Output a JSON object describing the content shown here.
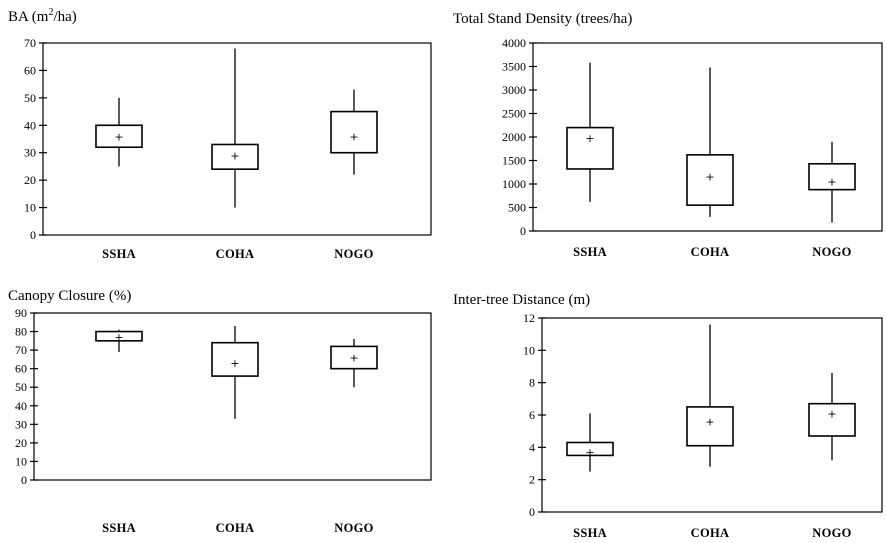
{
  "chart_data": [
    {
      "type": "box",
      "title": "BA (m²/ha)",
      "title_parts": [
        "BA (m",
        "2",
        "/ha)"
      ],
      "categories": [
        "SSHA",
        "COHA",
        "NOGO"
      ],
      "ylim": [
        0,
        70
      ],
      "yticks": [
        "0",
        "10",
        "20",
        "30",
        "40",
        "50",
        "60",
        "70"
      ],
      "boxes": [
        {
          "name": "SSHA",
          "min": 25,
          "q1": 32,
          "q3": 40,
          "max": 50,
          "mean": 36
        },
        {
          "name": "COHA",
          "min": 10,
          "q1": 24,
          "q3": 33,
          "max": 68,
          "mean": 29
        },
        {
          "name": "NOGO",
          "min": 22,
          "q1": 30,
          "q3": 45,
          "max": 53,
          "mean": 36
        }
      ]
    },
    {
      "type": "box",
      "title": "Total Stand Density (trees/ha)",
      "categories": [
        "SSHA",
        "COHA",
        "NOGO"
      ],
      "ylim": [
        0,
        4000
      ],
      "yticks": [
        "0",
        "500",
        "1000",
        "1500",
        "2000",
        "2500",
        "3000",
        "3500",
        "4000"
      ],
      "boxes": [
        {
          "name": "SSHA",
          "min": 620,
          "q1": 1320,
          "q3": 2200,
          "max": 3580,
          "mean": 1980
        },
        {
          "name": "COHA",
          "min": 300,
          "q1": 550,
          "q3": 1620,
          "max": 3480,
          "mean": 1160
        },
        {
          "name": "NOGO",
          "min": 180,
          "q1": 880,
          "q3": 1430,
          "max": 1900,
          "mean": 1050
        }
      ]
    },
    {
      "type": "box",
      "title": "Canopy Closure (%)",
      "categories": [
        "SSHA",
        "COHA",
        "NOGO"
      ],
      "ylim": [
        0,
        90
      ],
      "yticks": [
        "0",
        "10",
        "20",
        "30",
        "40",
        "50",
        "60",
        "70",
        "80",
        "90"
      ],
      "boxes": [
        {
          "name": "SSHA",
          "min": 69,
          "q1": 75,
          "q3": 80,
          "max": 81,
          "mean": 77
        },
        {
          "name": "COHA",
          "min": 33,
          "q1": 56,
          "q3": 74,
          "max": 83,
          "mean": 63
        },
        {
          "name": "NOGO",
          "min": 50,
          "q1": 60,
          "q3": 72,
          "max": 76,
          "mean": 66
        }
      ]
    },
    {
      "type": "box",
      "title": "Inter-tree Distance (m)",
      "categories": [
        "SSHA",
        "COHA",
        "NOGO"
      ],
      "ylim": [
        0,
        12
      ],
      "yticks": [
        "0",
        "2",
        "4",
        "6",
        "8",
        "10",
        "12"
      ],
      "boxes": [
        {
          "name": "SSHA",
          "min": 2.5,
          "q1": 3.5,
          "q3": 4.3,
          "max": 6.1,
          "mean": 3.7
        },
        {
          "name": "COHA",
          "min": 2.8,
          "q1": 4.1,
          "q3": 6.5,
          "max": 11.6,
          "mean": 5.6
        },
        {
          "name": "NOGO",
          "min": 3.2,
          "q1": 4.7,
          "q3": 6.7,
          "max": 8.6,
          "mean": 6.1
        }
      ]
    }
  ]
}
